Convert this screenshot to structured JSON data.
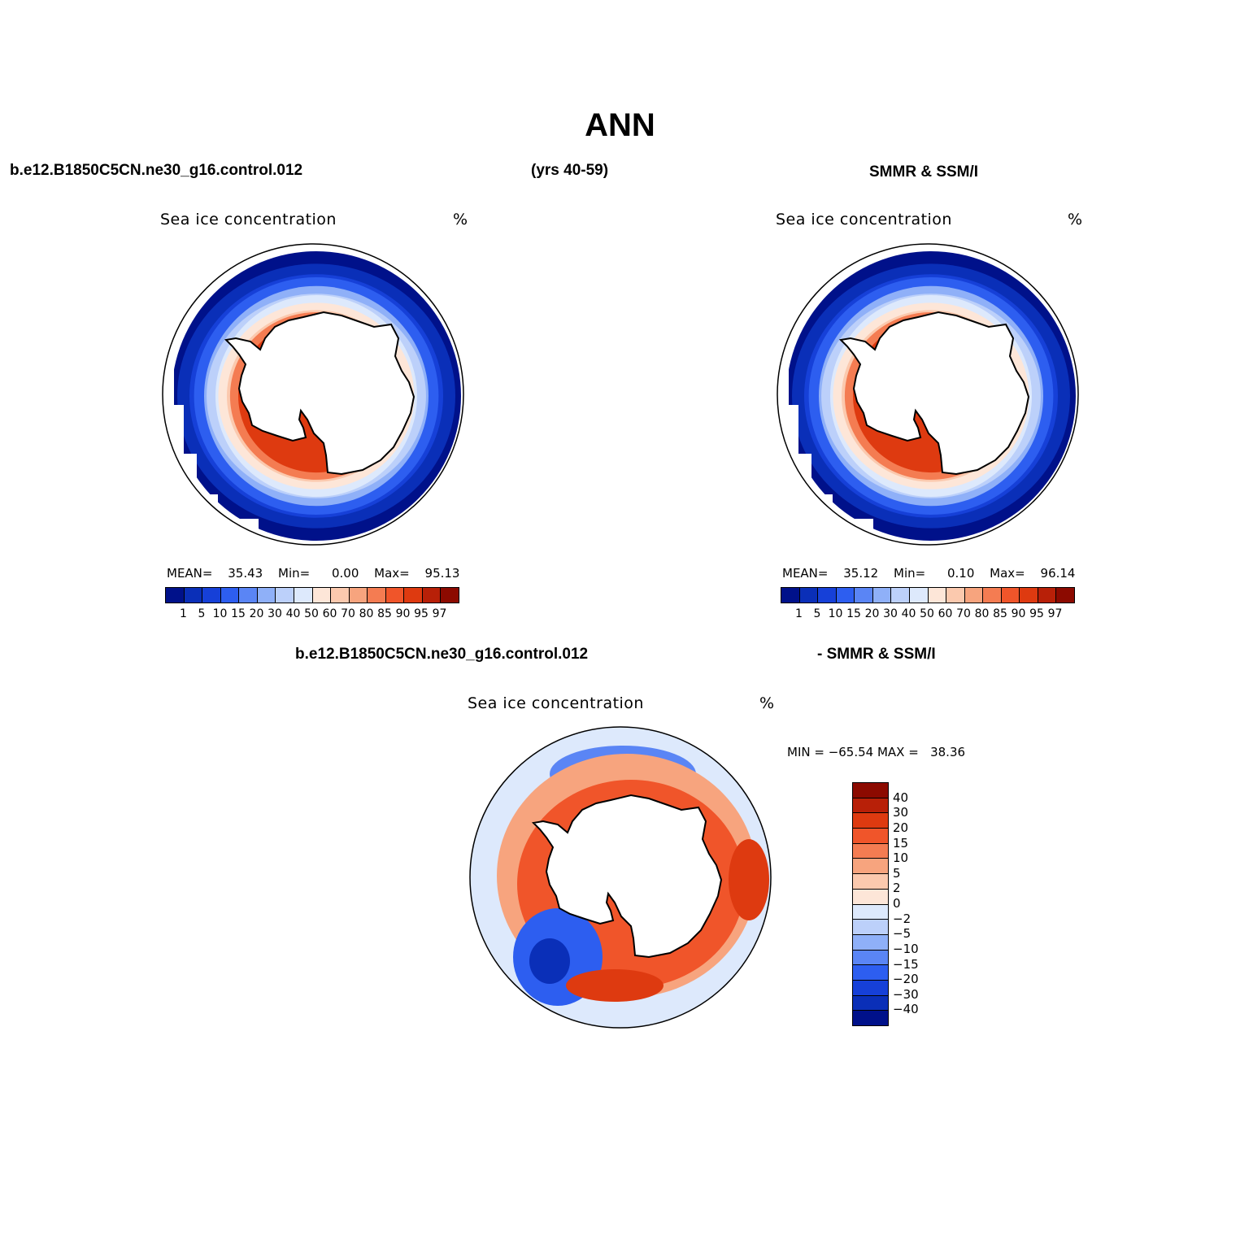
{
  "title": "ANN",
  "case_name": "b.e12.B1850C5CN.ne30_g16.control.012",
  "years": "(yrs 40-59)",
  "obs_name": "SMMR & SSM/I",
  "diff_case_name": "b.e12.B1850C5CN.ne30_g16.control.012",
  "diff_obs_name": "- SMMR & SSM/I",
  "panels": [
    {
      "name": "model",
      "subtitle": "Sea ice concentration",
      "units": "%",
      "mean_label": "MEAN=",
      "mean": "35.43",
      "min_label": "Min=",
      "min": "0.00",
      "max_label": "Max=",
      "max": "95.13"
    },
    {
      "name": "obs",
      "subtitle": "Sea ice concentration",
      "units": "%",
      "mean_label": "MEAN=",
      "mean": "35.12",
      "min_label": "Min=",
      "min": "0.10",
      "max_label": "Max=",
      "max": "96.14"
    },
    {
      "name": "difference",
      "subtitle": "Sea ice concentration",
      "units": "%",
      "minmax": "MIN = −65.54 MAX =   38.36"
    }
  ],
  "colorbar_conc": {
    "labels": [
      "1",
      "5",
      "10",
      "15",
      "20",
      "30",
      "40",
      "50",
      "60",
      "70",
      "80",
      "85",
      "90",
      "95",
      "97"
    ],
    "colors": [
      "#00118a",
      "#0a2fb8",
      "#1640d8",
      "#2d5ef0",
      "#5a85f5",
      "#8fb0f8",
      "#bcd0fa",
      "#dde9fc",
      "#fde6d8",
      "#fbc9ae",
      "#f7a47e",
      "#f47c52",
      "#f0552a",
      "#de3a10",
      "#b82008",
      "#8c0a00"
    ]
  },
  "colorbar_diff": {
    "labels": [
      "40",
      "30",
      "20",
      "15",
      "10",
      "5",
      "2",
      "0",
      "−2",
      "−5",
      "−10",
      "−15",
      "−20",
      "−30",
      "−40"
    ],
    "colors": [
      "#8c0a00",
      "#b82008",
      "#de3a10",
      "#f0552a",
      "#f47c52",
      "#f7a47e",
      "#fbc9ae",
      "#fde6d8",
      "#dde9fc",
      "#bcd0fa",
      "#8fb0f8",
      "#5a85f5",
      "#2d5ef0",
      "#1640d8",
      "#0a2fb8",
      "#00118a"
    ]
  }
}
